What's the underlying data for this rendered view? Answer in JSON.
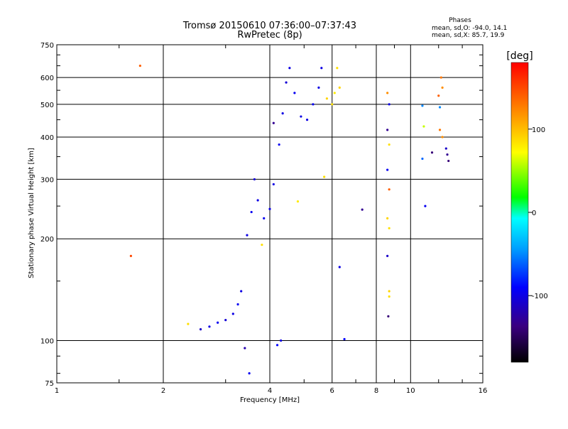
{
  "chart_data": {
    "type": "scatter",
    "title": "Tromsø 20150610 07:36:00–07:37:43",
    "subtitle": "RwPretec (8p)",
    "xlabel": "Frequency [MHz]",
    "ylabel": "Stationary phase Virtual Height [km]",
    "x_scale": "log2",
    "y_scale": "log",
    "xlim": [
      1,
      16
    ],
    "ylim": [
      75,
      750
    ],
    "x_ticks": [
      1,
      2,
      4,
      6,
      8,
      10,
      16
    ],
    "y_ticks": [
      75,
      100,
      200,
      300,
      400,
      500,
      600,
      750
    ],
    "grid": true,
    "phase_info": {
      "title": "Phases",
      "line_o": "mean, sd,O: -94.0, 14.1",
      "line_x": "mean, sd,X:  85.7, 19.9"
    },
    "colorbar": {
      "label": "[deg]",
      "ticks": [
        100,
        0,
        -100
      ],
      "range": [
        -180,
        180
      ]
    },
    "series": [
      {
        "points": [
          [
            1.72,
            650,
            140
          ],
          [
            1.62,
            178,
            150
          ],
          [
            2.35,
            112,
            85
          ],
          [
            2.55,
            108,
            -110
          ],
          [
            2.7,
            110,
            -100
          ],
          [
            2.85,
            113,
            -95
          ],
          [
            3.0,
            115,
            -105
          ],
          [
            3.15,
            120,
            -100
          ],
          [
            3.25,
            128,
            -95
          ],
          [
            3.32,
            140,
            -100
          ],
          [
            3.45,
            205,
            -100
          ],
          [
            3.55,
            240,
            -95
          ],
          [
            3.62,
            300,
            -105
          ],
          [
            3.7,
            260,
            -100
          ],
          [
            3.85,
            230,
            -95
          ],
          [
            4.0,
            245,
            -100
          ],
          [
            4.1,
            290,
            -100
          ],
          [
            4.25,
            380,
            -95
          ],
          [
            4.35,
            470,
            -100
          ],
          [
            4.45,
            580,
            -105
          ],
          [
            4.55,
            640,
            -100
          ],
          [
            4.7,
            540,
            -95
          ],
          [
            4.9,
            460,
            -100
          ],
          [
            5.1,
            450,
            -100
          ],
          [
            5.3,
            500,
            -95
          ],
          [
            5.5,
            560,
            -100
          ],
          [
            5.6,
            640,
            -100
          ],
          [
            5.8,
            520,
            90
          ],
          [
            6.0,
            500,
            85
          ],
          [
            6.1,
            540,
            80
          ],
          [
            6.2,
            640,
            85
          ],
          [
            6.3,
            560,
            90
          ],
          [
            4.8,
            258,
            80
          ],
          [
            3.8,
            192,
            85
          ],
          [
            5.7,
            305,
            85
          ],
          [
            4.1,
            440,
            -130
          ],
          [
            4.3,
            100,
            -100
          ],
          [
            4.2,
            97,
            -90
          ],
          [
            3.4,
            95,
            -120
          ],
          [
            3.5,
            80,
            -95
          ],
          [
            6.3,
            165,
            -100
          ],
          [
            6.5,
            101,
            -90
          ],
          [
            7.3,
            244,
            -130
          ],
          [
            8.6,
            540,
            120
          ],
          [
            8.7,
            500,
            -100
          ],
          [
            8.6,
            420,
            -130
          ],
          [
            8.7,
            380,
            85
          ],
          [
            8.6,
            320,
            -95
          ],
          [
            8.7,
            280,
            140
          ],
          [
            8.6,
            230,
            90
          ],
          [
            8.7,
            215,
            85
          ],
          [
            8.6,
            178,
            -110
          ],
          [
            8.7,
            140,
            90
          ],
          [
            8.7,
            135,
            85
          ],
          [
            8.65,
            118,
            -140
          ],
          [
            10.8,
            495,
            -50
          ],
          [
            10.9,
            430,
            60
          ],
          [
            10.8,
            345,
            -60
          ],
          [
            11.0,
            250,
            -95
          ],
          [
            11.5,
            360,
            -140
          ],
          [
            12.2,
            600,
            130
          ],
          [
            12.3,
            560,
            120
          ],
          [
            12.0,
            530,
            140
          ],
          [
            12.1,
            490,
            -50
          ],
          [
            12.1,
            420,
            130
          ],
          [
            12.3,
            400,
            120
          ],
          [
            12.6,
            370,
            -110
          ],
          [
            12.7,
            355,
            -130
          ],
          [
            12.8,
            340,
            -140
          ]
        ]
      }
    ]
  }
}
